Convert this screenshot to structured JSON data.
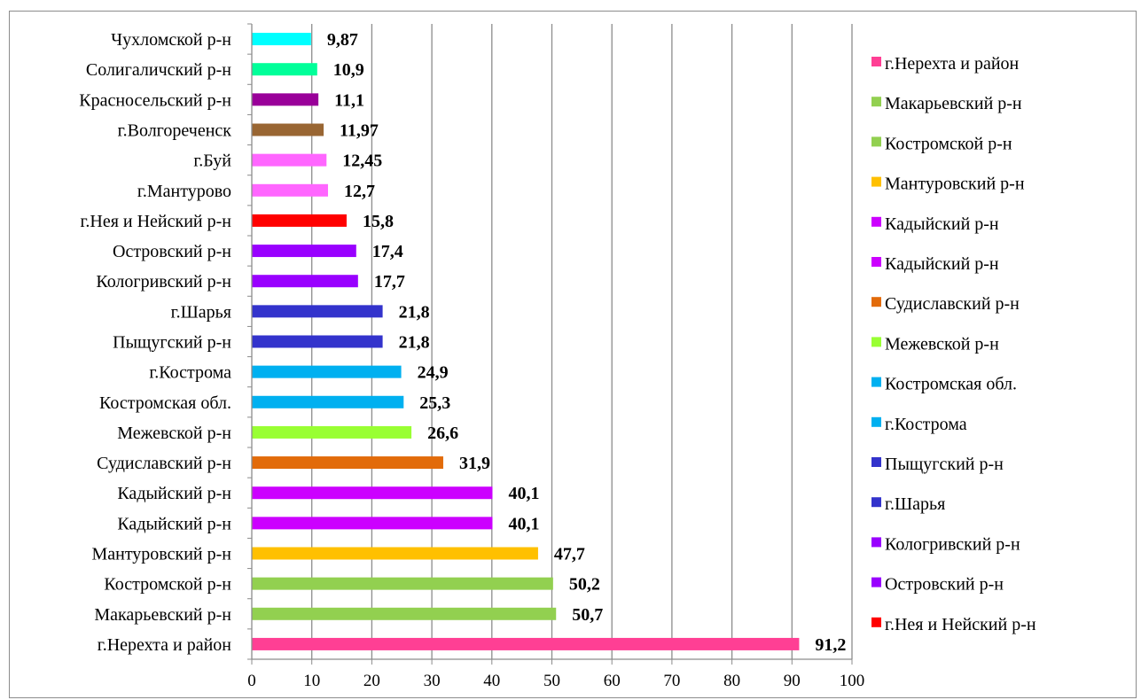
{
  "chart_data": {
    "type": "bar",
    "orientation": "horizontal",
    "title": "",
    "xlabel": "",
    "ylabel": "",
    "xlim": [
      0,
      100
    ],
    "x_ticks": [
      0,
      10,
      20,
      30,
      40,
      50,
      60,
      70,
      80,
      90,
      100
    ],
    "grid": "vertical",
    "legend_position": "right",
    "bars": [
      {
        "label": "г.Нерехта и район",
        "value": 91.2,
        "value_label": "91,2",
        "color": "#ff3f94"
      },
      {
        "label": "Макарьевский р-н",
        "value": 50.7,
        "value_label": "50,7",
        "color": "#92d050"
      },
      {
        "label": "Костромской р-н",
        "value": 50.2,
        "value_label": "50,2",
        "color": "#92d050"
      },
      {
        "label": "Мантуровский р-н",
        "value": 47.7,
        "value_label": "47,7",
        "color": "#ffc000"
      },
      {
        "label": "Кадыйский р-н",
        "value": 40.1,
        "value_label": "40,1",
        "color": "#cc00ff"
      },
      {
        "label": "Кадыйский р-н",
        "value": 40.1,
        "value_label": "40,1",
        "color": "#cc00ff"
      },
      {
        "label": "Судиславский р-н",
        "value": 31.9,
        "value_label": "31,9",
        "color": "#e26b0a"
      },
      {
        "label": "Межевской р-н",
        "value": 26.6,
        "value_label": "26,6",
        "color": "#99ff33"
      },
      {
        "label": "Костромская обл.",
        "value": 25.3,
        "value_label": "25,3",
        "color": "#00b0f0"
      },
      {
        "label": "г.Кострома",
        "value": 24.9,
        "value_label": "24,9",
        "color": "#00b0f0"
      },
      {
        "label": "Пыщугский р-н",
        "value": 21.8,
        "value_label": "21,8",
        "color": "#3333cc"
      },
      {
        "label": "г.Шарья",
        "value": 21.8,
        "value_label": "21,8",
        "color": "#3333cc"
      },
      {
        "label": "Кологривский р-н",
        "value": 17.7,
        "value_label": "17,7",
        "color": "#9900ff"
      },
      {
        "label": "Островский р-н",
        "value": 17.4,
        "value_label": "17,4",
        "color": "#9900ff"
      },
      {
        "label": "г.Нея и Нейский р-н",
        "value": 15.8,
        "value_label": "15,8",
        "color": "#ff0000"
      },
      {
        "label": "г.Мантурово",
        "value": 12.7,
        "value_label": "12,7",
        "color": "#ff66ff"
      },
      {
        "label": "г.Буй",
        "value": 12.45,
        "value_label": "12,45",
        "color": "#ff66ff"
      },
      {
        "label": "г.Волгореченск",
        "value": 11.97,
        "value_label": "11,97",
        "color": "#996633"
      },
      {
        "label": "Красносельский р-н",
        "value": 11.1,
        "value_label": "11,1",
        "color": "#990099"
      },
      {
        "label": "Солигаличский р-н",
        "value": 10.9,
        "value_label": "10,9",
        "color": "#00ff99"
      },
      {
        "label": "Чухломской р-н",
        "value": 9.87,
        "value_label": "9,87",
        "color": "#00ffff"
      }
    ],
    "legend": [
      {
        "label": "г.Нерехта и район",
        "color": "#ff3f94"
      },
      {
        "label": "Макарьевский р-н",
        "color": "#92d050"
      },
      {
        "label": "Костромской р-н",
        "color": "#92d050"
      },
      {
        "label": "Мантуровский р-н",
        "color": "#ffc000"
      },
      {
        "label": "Кадыйский р-н",
        "color": "#cc00ff"
      },
      {
        "label": "Кадыйский р-н",
        "color": "#cc00ff"
      },
      {
        "label": "Судиславский р-н",
        "color": "#e26b0a"
      },
      {
        "label": "Межевской р-н",
        "color": "#99ff33"
      },
      {
        "label": "Костромская обл.",
        "color": "#00b0f0"
      },
      {
        "label": "г.Кострома",
        "color": "#00b0f0"
      },
      {
        "label": "Пыщугский р-н",
        "color": "#3333cc"
      },
      {
        "label": "г.Шарья",
        "color": "#3333cc"
      },
      {
        "label": "Кологривский р-н",
        "color": "#9900ff"
      },
      {
        "label": "Островский р-н",
        "color": "#9900ff"
      },
      {
        "label": "г.Нея и Нейский р-н",
        "color": "#ff0000"
      }
    ]
  }
}
